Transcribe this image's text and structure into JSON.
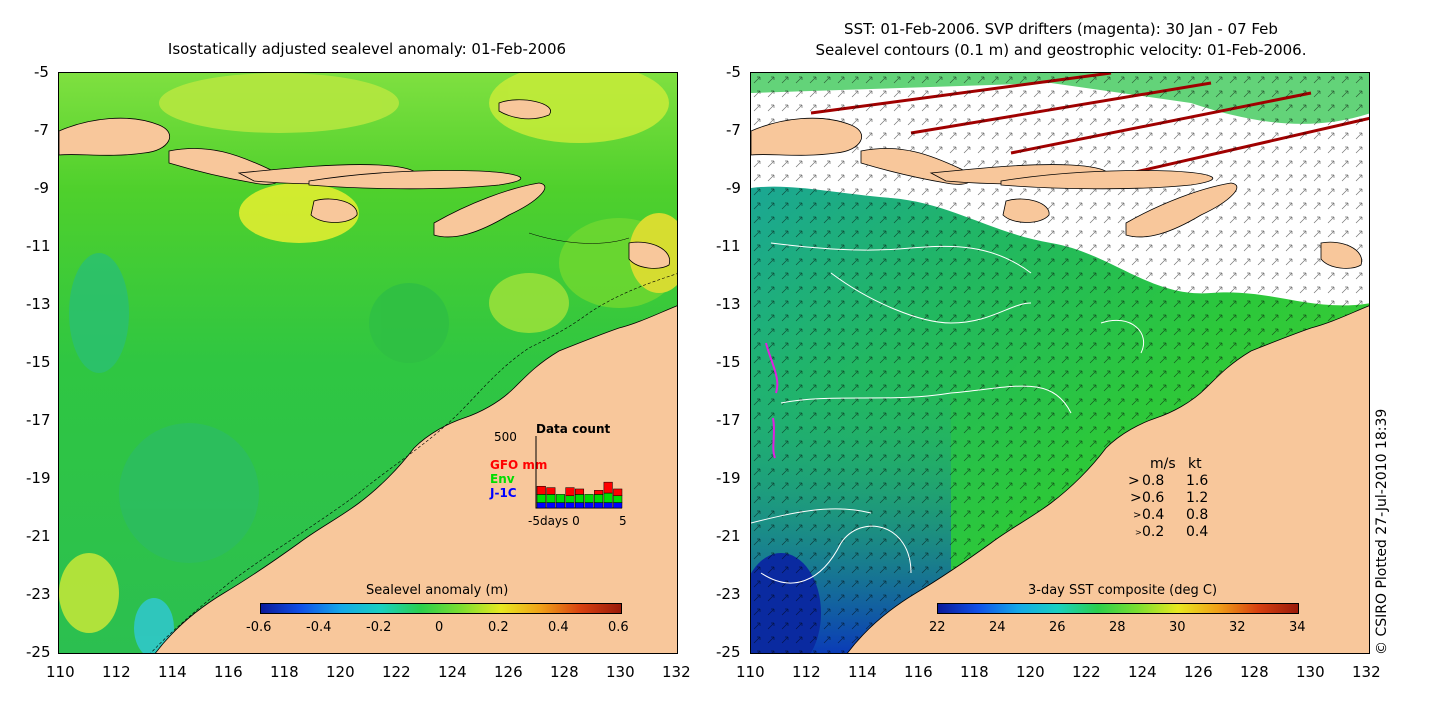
{
  "left_map": {
    "title": "Isostatically adjusted sealevel anomaly: 01-Feb-2006",
    "colorbar": {
      "title": "Sealevel anomaly (m)",
      "tick_labels": [
        "-0.6",
        "-0.4",
        "-0.2",
        "0",
        "0.2",
        "0.4",
        "0.6"
      ]
    },
    "inset": {
      "title": "Data count",
      "y_max_label": "500",
      "series": [
        {
          "name": "GFO mm",
          "color": "#ff0000"
        },
        {
          "name": "Env",
          "color": "#00dd00"
        },
        {
          "name": "J-1C",
          "color": "#0000ff"
        }
      ],
      "x_axis_label": "-5days 0",
      "x_end_label": "5",
      "chart_data": {
        "type": "bar",
        "title": "Data count",
        "xlabel": "days",
        "ylim": [
          0,
          500
        ],
        "categories": [
          -4,
          -3,
          -2,
          -1,
          0,
          1,
          2,
          3,
          4
        ],
        "series": [
          {
            "name": "J-1C",
            "values": [
              40,
              40,
              40,
              40,
              40,
              40,
              40,
              40,
              40
            ]
          },
          {
            "name": "Env",
            "values": [
              60,
              60,
              60,
              50,
              60,
              60,
              60,
              70,
              50
            ]
          },
          {
            "name": "GFO mm",
            "values": [
              60,
              50,
              0,
              60,
              40,
              0,
              30,
              80,
              50
            ]
          }
        ]
      }
    }
  },
  "right_map": {
    "title_line1": "SST: 01-Feb-2006. SVP drifters (magenta): 30 Jan - 07 Feb",
    "title_line2": "Sealevel contours (0.1 m) and geostrophic velocity: 01-Feb-2006.",
    "colorbar": {
      "title": "3-day SST composite (deg C)",
      "tick_labels": [
        "22",
        "24",
        "26",
        "28",
        "30",
        "32",
        "34"
      ]
    },
    "legend": {
      "header_ms": "m/s",
      "header_kt": "kt",
      "rows": [
        {
          "ms": "0.8",
          "kt": "1.6"
        },
        {
          "ms": "0.6",
          "kt": "1.2"
        },
        {
          "ms": "0.4",
          "kt": "0.8"
        },
        {
          "ms": "0.2",
          "kt": "0.4"
        }
      ]
    }
  },
  "axes": {
    "lat_labels": [
      "-5",
      "-7",
      "-9",
      "-11",
      "-13",
      "-15",
      "-17",
      "-19",
      "-21",
      "-23",
      "-25"
    ],
    "lon_labels": [
      "110",
      "112",
      "114",
      "116",
      "118",
      "120",
      "122",
      "124",
      "126",
      "128",
      "130",
      "132"
    ]
  },
  "credit": "© CSIRO Plotted 27-Jul-2010 18:39",
  "colors": {
    "land": "#f8c79b",
    "ocean_mid": "#17cc3a"
  }
}
